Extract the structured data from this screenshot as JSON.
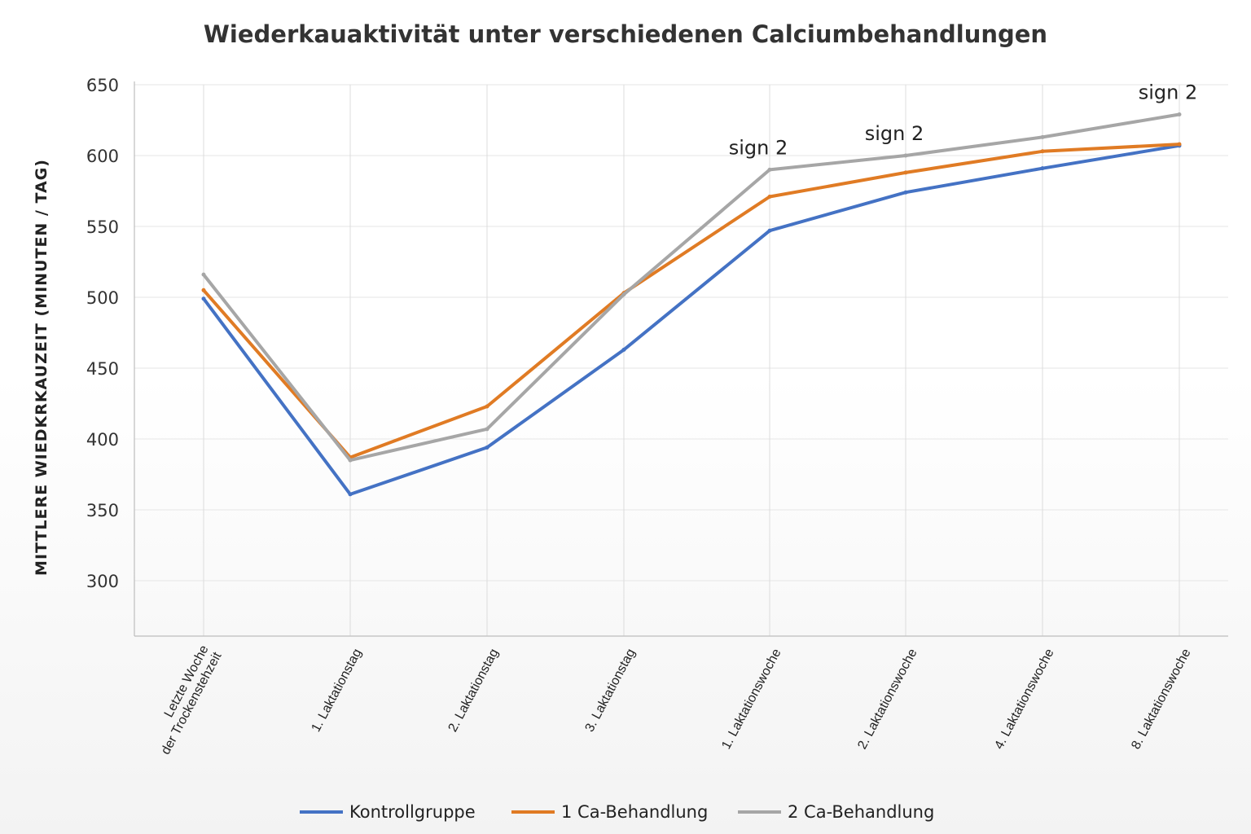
{
  "chart_data": {
    "type": "line",
    "title": "Wiederkauaktivität unter verschiedenen Calciumbehandlungen",
    "ylabel": "MITTLERE WIEDKRKAUZEIT (MINUTEN / TAG)",
    "xlabel": "",
    "ylim": [
      260,
      650
    ],
    "yticks": [
      300,
      350,
      400,
      450,
      500,
      550,
      600,
      650
    ],
    "grid": true,
    "legend_position": "bottom",
    "categories": [
      [
        "Letzte Woche",
        "der Trockenstehzeit"
      ],
      [
        "1. Laktationstag"
      ],
      [
        "2. Laktationstag"
      ],
      [
        "3. Laktationstag"
      ],
      [
        "1. Laktationswoche"
      ],
      [
        "2. Laktationswoche"
      ],
      [
        "4. Laktationswoche"
      ],
      [
        "8. Laktationswoche"
      ]
    ],
    "series": [
      {
        "name": "Kontrollgruppe",
        "color": "#4472c4",
        "values": [
          499,
          361,
          394,
          463,
          547,
          574,
          591,
          607
        ]
      },
      {
        "name": "1 Ca-Behandlung",
        "color": "#e07b24",
        "values": [
          505,
          387,
          423,
          503,
          571,
          588,
          603,
          608
        ]
      },
      {
        "name": "2 Ca-Behandlung",
        "color": "#a6a6a6",
        "values": [
          516,
          385,
          407,
          502,
          590,
          600,
          613,
          629
        ]
      }
    ],
    "annotations": [
      {
        "text": "sign 2",
        "category_index": 4,
        "y": 590
      },
      {
        "text": "sign 2",
        "category_index": 5,
        "y": 600
      },
      {
        "text": "sign 2",
        "category_index": 7,
        "y": 629
      }
    ]
  }
}
